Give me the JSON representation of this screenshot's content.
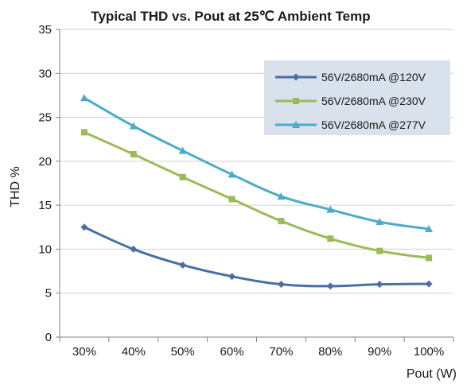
{
  "chart_data": {
    "type": "line",
    "title": "Typical THD vs. Pout at 25℃ Ambient Temp",
    "xlabel": "Pout (W)",
    "ylabel": "THD %",
    "categories": [
      "30%",
      "40%",
      "50%",
      "60%",
      "70%",
      "80%",
      "90%",
      "100%"
    ],
    "ylim": [
      0,
      35
    ],
    "yticks": [
      0,
      5,
      10,
      15,
      20,
      25,
      30,
      35
    ],
    "grid": true,
    "legend_position": "top-right",
    "series": [
      {
        "name": "56V/2680mA @120V",
        "color": "#4a6fa5",
        "marker": "diamond",
        "values": [
          12.5,
          10.0,
          8.2,
          6.9,
          6.0,
          5.8,
          6.0,
          6.05
        ]
      },
      {
        "name": "56V/2680mA @230V",
        "color": "#9bbb59",
        "marker": "square",
        "values": [
          23.3,
          20.8,
          18.2,
          15.7,
          13.2,
          11.2,
          9.8,
          9.0
        ]
      },
      {
        "name": "56V/2680mA @277V",
        "color": "#4bacc6",
        "marker": "triangle",
        "values": [
          27.2,
          24.0,
          21.2,
          18.5,
          16.0,
          14.5,
          13.1,
          12.3
        ]
      }
    ]
  },
  "colors": {
    "legend_background": "#d9e1ec",
    "grid": "#d0d0d0",
    "axis": "#808080"
  }
}
